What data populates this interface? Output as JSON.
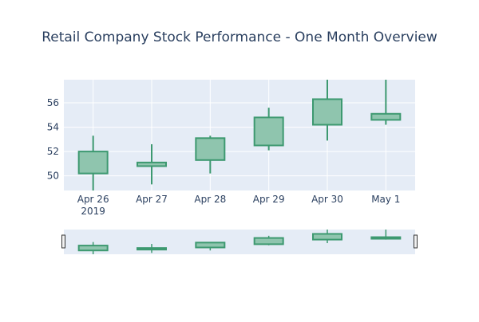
{
  "chart_data": {
    "type": "candlestick",
    "title": "Retail Company Stock Performance - One Month Overview",
    "categories": [
      "Apr 26",
      "Apr 27",
      "Apr 28",
      "Apr 29",
      "Apr 30",
      "May 1"
    ],
    "x_year_label": "2019",
    "ohlc": [
      {
        "open": 50.2,
        "high": 53.3,
        "low": 48.8,
        "close": 52.0
      },
      {
        "open": 51.1,
        "high": 52.6,
        "low": 49.3,
        "close": 50.8
      },
      {
        "open": 51.3,
        "high": 53.3,
        "low": 50.2,
        "close": 53.1
      },
      {
        "open": 52.5,
        "high": 55.6,
        "low": 52.1,
        "close": 54.8
      },
      {
        "open": 54.2,
        "high": 57.9,
        "low": 52.9,
        "close": 56.3
      },
      {
        "open": 54.6,
        "high": 57.9,
        "low": 54.2,
        "close": 55.1
      }
    ],
    "y_ticks": [
      50,
      52,
      54,
      56
    ],
    "ylim": [
      48.8,
      57.9
    ],
    "grid": true,
    "increasing_color": "#3d9970",
    "increasing_fill": "#8fc5ae",
    "plot_bg": "#e5ecf6",
    "rangeslider": true
  }
}
